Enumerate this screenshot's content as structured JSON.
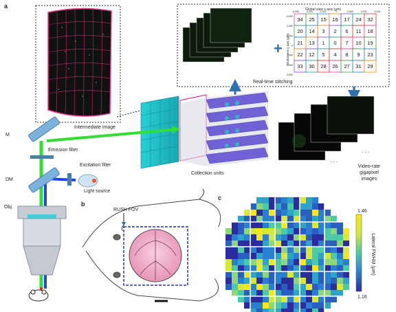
{
  "panels": {
    "a": "a",
    "b": "b",
    "c": "c"
  },
  "labels": {
    "intermediate_image": "Intermediate image",
    "realtime_stitching": "Real-time stitching",
    "collection_units": "Collection units",
    "video_rate_line1": "Video-rate",
    "video_rate_line2": "gigapixel",
    "video_rate_line3": "images",
    "mirror": "M",
    "emission_filter": "Emission filter",
    "dichroic": "DM",
    "excitation_filter": "Excitation filter",
    "light_source": "Light source",
    "objective": "Obj.",
    "rush_fov": "RUSH FOV"
  },
  "stitch_grid": {
    "title": "Global view x axis (μm)",
    "ylabel": "Global view y axis (μm)",
    "x_ticks": [
      "-6,000",
      "-4,000",
      "-2,000",
      "0",
      "2,000",
      "4,000",
      "6,000"
    ],
    "y_ticks": [
      "-3,000",
      "-2,000",
      "-1,000",
      "0",
      "1,000",
      "2,000",
      "3,000"
    ],
    "cells": [
      [
        34,
        25,
        15,
        16,
        17,
        24,
        32
      ],
      [
        20,
        14,
        3,
        2,
        6,
        11,
        18
      ],
      [
        21,
        13,
        1,
        0,
        7,
        10,
        19
      ],
      [
        22,
        12,
        5,
        4,
        8,
        9,
        23
      ],
      [
        33,
        30,
        28,
        26,
        27,
        31,
        29
      ]
    ]
  },
  "colorbar": {
    "max_label": "1.46",
    "min_label": "1.16",
    "title": "Lateral FWHM (μm)",
    "min": 1.16,
    "max": 1.46
  },
  "colors": {
    "green_beam": "#33dd33",
    "blue_beam": "#2244ee",
    "fov_box": "#1f2fb8",
    "brain": "#f3b6cf",
    "frame_magenta": "#e8388a",
    "arrow_blue": "#2f6fb3"
  }
}
